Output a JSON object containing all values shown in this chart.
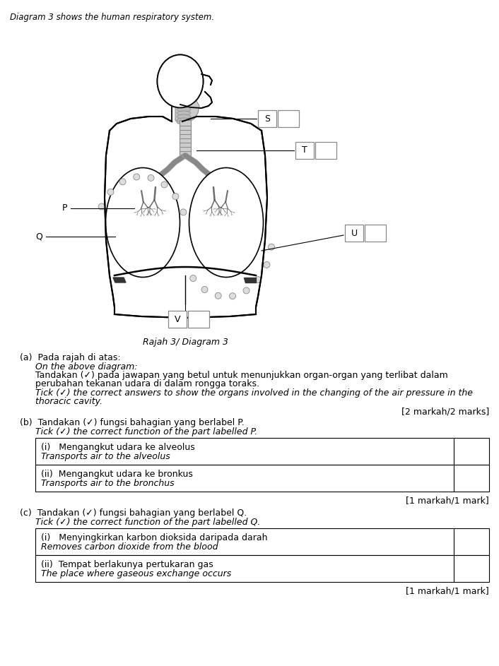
{
  "title_text": "Diagram 3 shows the human respiratory system.",
  "caption": "Rajah 3/ Diagram 3",
  "fig_width": 7.06,
  "fig_height": 9.43,
  "bg_color": "#ffffff",
  "label_S": "S",
  "label_T": "T",
  "label_U": "U",
  "label_V": "V",
  "label_P": "P",
  "label_Q": "Q",
  "section_a_title": "(a)  Pada rajah di atas:",
  "section_a_italic1": "On the above diagram:",
  "section_a_text1": "Tandakan (✓) pada jawapan yang betul untuk menunjukkan organ-organ yang terlibat dalam\nperubahan tekanan udara di dalam rongga toraks.",
  "section_a_italic2": "Tick (✓) the correct answers to show the organs involved in the changing of the air pressure in the\nthoracic cavity.",
  "section_a_marks": "[2 markah/2 marks]",
  "section_b_title": "(b)  Tandakan (✓) fungsi bahagian yang berlabel P.",
  "section_b_italic": "Tick (✓) the correct function of the part labelled P.",
  "section_b_rows": [
    [
      "(i)   Mengangkut udara ke alveolus",
      "Transports air to the alveolus"
    ],
    [
      "(ii)  Mengangkut udara ke bronkus",
      "Transports air to the bronchus"
    ]
  ],
  "section_b_marks": "[1 markah/1 mark]",
  "section_c_title": "(c)  Tandakan (✓) fungsi bahagian yang berlabel Q.",
  "section_c_italic": "Tick (✓) the correct function of the part labelled Q.",
  "section_c_rows": [
    [
      "(i)   Menyingkirkan karbon dioksida daripada darah",
      "Removes carbon dioxide from the blood"
    ],
    [
      "(ii)  Tempat berlakunya pertukaran gas",
      "The place where gaseous exchange occurs"
    ]
  ],
  "section_c_marks": "[1 markah/1 mark]"
}
